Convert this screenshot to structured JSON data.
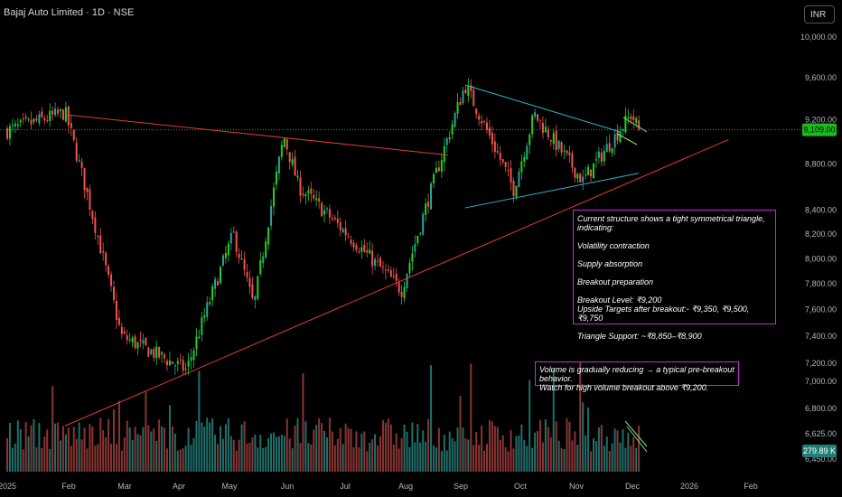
{
  "header": {
    "title": "Bajaj Auto Limited · 1D · NSE",
    "currency_button": "INR"
  },
  "chart_data": {
    "type": "candlestick",
    "symbol": "Bajaj Auto Limited",
    "interval": "1D",
    "exchange": "NSE",
    "price_scale": "log",
    "y_ticks": [
      {
        "label": "10,000.00",
        "value": 10000
      },
      {
        "label": "9,600.00",
        "value": 9600
      },
      {
        "label": "9,200.00",
        "value": 9200
      },
      {
        "label": "8,800.00",
        "value": 8800
      },
      {
        "label": "8,400.00",
        "value": 8400
      },
      {
        "label": "8,200.00",
        "value": 8200
      },
      {
        "label": "8,000.00",
        "value": 8000
      },
      {
        "label": "7,800.00",
        "value": 7800
      },
      {
        "label": "7,600.00",
        "value": 7600
      },
      {
        "label": "7,400.00",
        "value": 7400
      },
      {
        "label": "7,200.00",
        "value": 7200
      },
      {
        "label": "7,000.00",
        "value": 7000
      },
      {
        "label": "6,800.00",
        "value": 6800
      },
      {
        "label": "6,625.00",
        "value": 6625
      },
      {
        "label": "6,450.00",
        "value": 6450
      }
    ],
    "x_ticks": [
      "2025",
      "Feb",
      "Mar",
      "Apr",
      "May",
      "Jun",
      "Jul",
      "Aug",
      "Sep",
      "Oct",
      "Nov",
      "Dec",
      "2026",
      "Feb"
    ],
    "last_price": {
      "label": "9,109.00",
      "value": 9109
    },
    "last_volume": {
      "label": "279.89 K"
    },
    "key_points": [
      {
        "date": "2025-01-01",
        "price": 9100
      },
      {
        "date": "2025-02-01",
        "price": 9270
      },
      {
        "date": "2025-03-03",
        "price": 7400
      },
      {
        "date": "2025-04-07",
        "price": 7150
      },
      {
        "date": "2025-05-02",
        "price": 8200
      },
      {
        "date": "2025-05-13",
        "price": 7620
      },
      {
        "date": "2025-05-29",
        "price": 9050
      },
      {
        "date": "2025-06-06",
        "price": 8600
      },
      {
        "date": "2025-07-31",
        "price": 7750
      },
      {
        "date": "2025-08-25",
        "price": 9050
      },
      {
        "date": "2025-09-03",
        "price": 9530
      },
      {
        "date": "2025-09-29",
        "price": 8580
      },
      {
        "date": "2025-10-10",
        "price": 9250
      },
      {
        "date": "2025-11-05",
        "price": 8650
      },
      {
        "date": "2025-12-01",
        "price": 9250
      },
      {
        "date": "2025-12-05",
        "price": 9109
      }
    ],
    "trendlines": [
      {
        "name": "falling-resistance",
        "color": "#e23a3a",
        "from": {
          "date": "2025-02-01",
          "price": 9250
        },
        "to": {
          "date": "2025-08-25",
          "price": 8880
        }
      },
      {
        "name": "rising-support",
        "color": "#e23a3a",
        "from": {
          "date": "2025-02-01",
          "price": 6760
        },
        "to": {
          "date": "2026-01-22",
          "price": 9020
        }
      },
      {
        "name": "triangle-upper",
        "color": "#2bb6c9",
        "from": {
          "date": "2025-09-03",
          "price": 9530
        },
        "to": {
          "date": "2025-11-25",
          "price": 9090
        }
      },
      {
        "name": "triangle-lower",
        "color": "#2bb6c9",
        "from": {
          "date": "2025-09-03",
          "price": 8420
        },
        "to": {
          "date": "2025-12-05",
          "price": 8720
        }
      }
    ],
    "colors": {
      "up": "#26a69a",
      "up_bright": "#24d024",
      "down": "#ef5350",
      "vol_up": "#1f6f6a",
      "vol_down": "#8a3533",
      "last_price": "#1bbd1b",
      "grid_line": "#2a9c2a"
    }
  },
  "annotations": {
    "triangle_note": [
      "Current structure shows a tight symmetrical triangle, indicating:",
      "",
      "Volatility contraction",
      "",
      "Supply absorption",
      "",
      "Breakout preparation",
      "",
      "Breakout Level: ₹9,200",
      "Upside Targets after breakout:- ₹9,350, ₹9,500, ₹9,750",
      "",
      "Triangle Support: ~₹8,850–₹8,900"
    ],
    "volume_note": [
      "Volume is gradually reducing → a typical pre-breakout behavior.",
      "Watch for high volume breakout above ₹9,200."
    ]
  }
}
